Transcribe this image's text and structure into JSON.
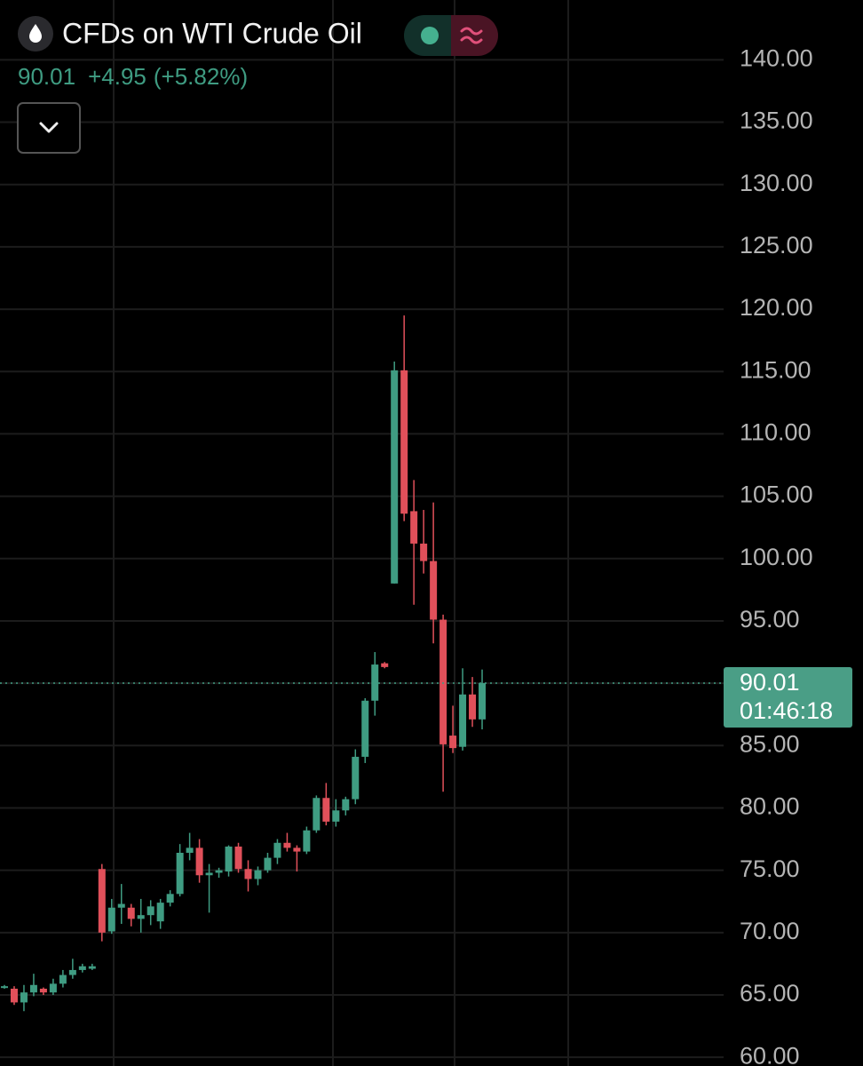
{
  "chart_data": {
    "type": "candlestick",
    "title": "CFDs on WTI Crude Oil",
    "last_value": 90.01,
    "change": "+4.95",
    "change_percent": "(+5.82%)",
    "countdown": "01:46:18",
    "up_color": "#3f9c82",
    "down_color": "#e0505a",
    "grid": true,
    "ylim": [
      59.3,
      144.8
    ],
    "yticks": [
      {
        "value": 60,
        "label": "60.00"
      },
      {
        "value": 65,
        "label": "65.00"
      },
      {
        "value": 70,
        "label": "70.00"
      },
      {
        "value": 75,
        "label": "75.00"
      },
      {
        "value": 80,
        "label": "80.00"
      },
      {
        "value": 85,
        "label": "85.00"
      },
      {
        "value": 90,
        "label": "90.00"
      },
      {
        "value": 95,
        "label": "95.00"
      },
      {
        "value": 100,
        "label": "100.00"
      },
      {
        "value": 105,
        "label": "105.00"
      },
      {
        "value": 110,
        "label": "110.00"
      },
      {
        "value": 115,
        "label": "115.00"
      },
      {
        "value": 120,
        "label": "120.00"
      },
      {
        "value": 125,
        "label": "125.00"
      },
      {
        "value": 130,
        "label": "130.00"
      },
      {
        "value": 135,
        "label": "135.00"
      },
      {
        "value": 140,
        "label": "140.00"
      }
    ],
    "open": [
      65.6,
      65.5,
      64.4,
      65.2,
      65.5,
      65.2,
      65.9,
      66.6,
      67.0,
      67.1,
      75.1,
      70.1,
      72.0,
      72.0,
      71.1,
      71.4,
      70.9,
      72.4,
      73.1,
      76.4,
      76.8,
      74.6,
      74.8,
      74.9,
      76.9,
      75.1,
      74.3,
      75.0,
      76.0,
      77.2,
      76.8,
      76.5,
      78.2,
      80.8,
      78.9,
      79.8,
      80.7,
      84.1,
      88.6,
      91.6,
      98.0,
      115.1,
      103.8,
      101.2,
      99.8,
      95.1,
      85.8,
      84.9,
      89.1,
      87.1
    ],
    "high": [
      65.8,
      65.7,
      65.8,
      66.7,
      65.6,
      66.3,
      67.0,
      67.9,
      67.5,
      67.5,
      75.5,
      72.7,
      73.9,
      72.3,
      72.7,
      72.6,
      72.7,
      73.4,
      77.1,
      78.0,
      77.5,
      75.5,
      75.2,
      77.0,
      77.2,
      75.8,
      75.3,
      76.4,
      77.5,
      78.0,
      77.0,
      78.5,
      81.0,
      82.0,
      80.7,
      80.9,
      84.7,
      88.8,
      92.5,
      91.7,
      115.8,
      119.5,
      106.3,
      103.9,
      104.5,
      95.5,
      88.2,
      91.2,
      90.5,
      91.1
    ],
    "low": [
      65.5,
      64.2,
      63.7,
      64.9,
      65.0,
      65.0,
      65.6,
      66.3,
      66.8,
      67.0,
      69.3,
      69.9,
      70.7,
      70.5,
      70.0,
      70.6,
      70.3,
      72.1,
      72.9,
      75.8,
      74.0,
      71.6,
      74.4,
      74.5,
      74.8,
      73.3,
      73.8,
      74.8,
      75.5,
      76.5,
      74.9,
      76.3,
      78.0,
      78.6,
      78.5,
      79.4,
      80.3,
      83.6,
      87.4,
      91.2,
      98.0,
      103.0,
      96.3,
      98.8,
      93.2,
      81.3,
      84.4,
      84.6,
      86.5,
      86.3
    ],
    "close": [
      65.7,
      64.4,
      65.2,
      65.8,
      65.2,
      65.9,
      66.6,
      67.0,
      67.3,
      67.3,
      70.0,
      72.0,
      72.3,
      71.1,
      71.4,
      72.1,
      72.4,
      73.1,
      76.4,
      76.8,
      74.6,
      74.8,
      75.0,
      76.9,
      75.1,
      74.3,
      75.0,
      76.0,
      77.2,
      76.8,
      76.5,
      78.2,
      80.8,
      78.9,
      79.8,
      80.7,
      84.1,
      88.6,
      91.5,
      91.3,
      115.1,
      103.6,
      101.2,
      99.8,
      95.1,
      85.1,
      84.8,
      89.1,
      87.1,
      90.01
    ]
  }
}
